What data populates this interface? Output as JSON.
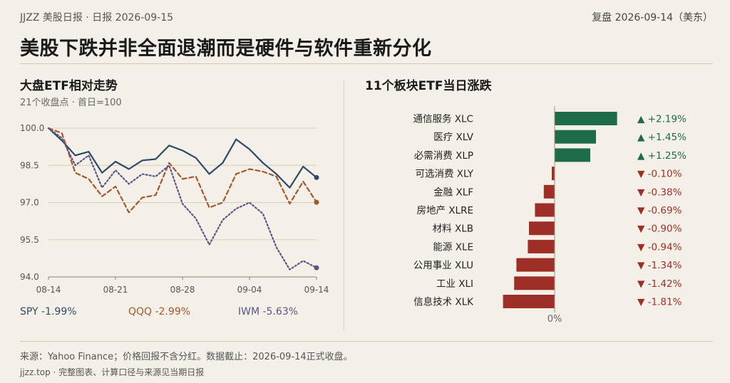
{
  "header": {
    "topline": "JJZZ 美股日报 · 日报 2026-09-15",
    "topright": "复盘 2026-09-14（美东）",
    "headline": "美股下跌并非全面退潮而是硬件与软件重新分化"
  },
  "left_panel": {
    "title": "大盘ETF相对走势",
    "subtitle": "21个收盘点 · 首日=100"
  },
  "right_panel": {
    "title": "11个板块ETF当日涨跌"
  },
  "footer": {
    "source": "来源：Yahoo Finance；价格回报不含分红。数据截止：2026-09-14正式收盘。",
    "note": "jjzz.top · 完整图表、计算口径与来源见当期日报"
  },
  "colors": {
    "spy": "#2e4a66",
    "qqq": "#a4582f",
    "iwm": "#5b5585",
    "up": "#1e6b47",
    "down": "#9e2f26",
    "grid": "#d5cec2"
  },
  "chart_data": [
    {
      "type": "line",
      "title": "大盘ETF相对走势",
      "x_ticks": [
        "08-14",
        "08-21",
        "08-28",
        "09-04",
        "09-14"
      ],
      "x_tick_index": [
        0,
        5,
        10,
        15,
        20
      ],
      "y_ticks": [
        "100.0",
        "98.5",
        "97.0",
        "95.5",
        "94.0"
      ],
      "ylim": [
        94.0,
        100.0
      ],
      "grid": true,
      "series": [
        {
          "name": "SPY",
          "legend": "SPY -1.99%",
          "style": "solid",
          "values": [
            100.0,
            99.5,
            98.9,
            99.05,
            98.2,
            98.65,
            98.35,
            98.7,
            98.75,
            99.3,
            99.1,
            98.8,
            98.15,
            98.6,
            99.55,
            99.15,
            98.6,
            98.15,
            97.6,
            98.45,
            98.01
          ]
        },
        {
          "name": "QQQ",
          "legend": "QQQ -2.99%",
          "style": "dashed",
          "values": [
            100.0,
            99.8,
            98.2,
            97.95,
            97.25,
            97.65,
            96.6,
            97.2,
            97.3,
            98.6,
            97.95,
            98.05,
            96.8,
            97.0,
            98.15,
            98.35,
            98.25,
            98.05,
            96.95,
            97.85,
            97.01
          ]
        },
        {
          "name": "IWM",
          "legend": "IWM -5.63%",
          "style": "dotted",
          "values": [
            100.0,
            99.6,
            98.5,
            98.9,
            97.6,
            98.3,
            97.75,
            98.15,
            98.05,
            98.5,
            96.95,
            96.35,
            95.3,
            96.3,
            96.75,
            97.0,
            96.55,
            95.2,
            94.3,
            94.65,
            94.37
          ]
        }
      ]
    },
    {
      "type": "bar",
      "orientation": "horizontal",
      "title": "11个板块ETF当日涨跌",
      "zero_label": "0%",
      "categories": [
        "通信服务 XLC",
        "医疗 XLV",
        "必需消费 XLP",
        "可选消费 XLY",
        "金融 XLF",
        "房地产 XLRE",
        "材料 XLB",
        "能源 XLE",
        "公用事业 XLU",
        "工业 XLI",
        "信息技术 XLK"
      ],
      "values": [
        2.19,
        1.45,
        1.25,
        -0.1,
        -0.38,
        -0.69,
        -0.9,
        -0.94,
        -1.34,
        -1.42,
        -1.81
      ],
      "labels": [
        "▲ +2.19%",
        "▲ +1.45%",
        "▲ +1.25%",
        "▼ -0.10%",
        "▼ -0.38%",
        "▼ -0.69%",
        "▼ -0.90%",
        "▼ -0.94%",
        "▼ -1.34%",
        "▼ -1.42%",
        "▼ -1.81%"
      ]
    }
  ]
}
